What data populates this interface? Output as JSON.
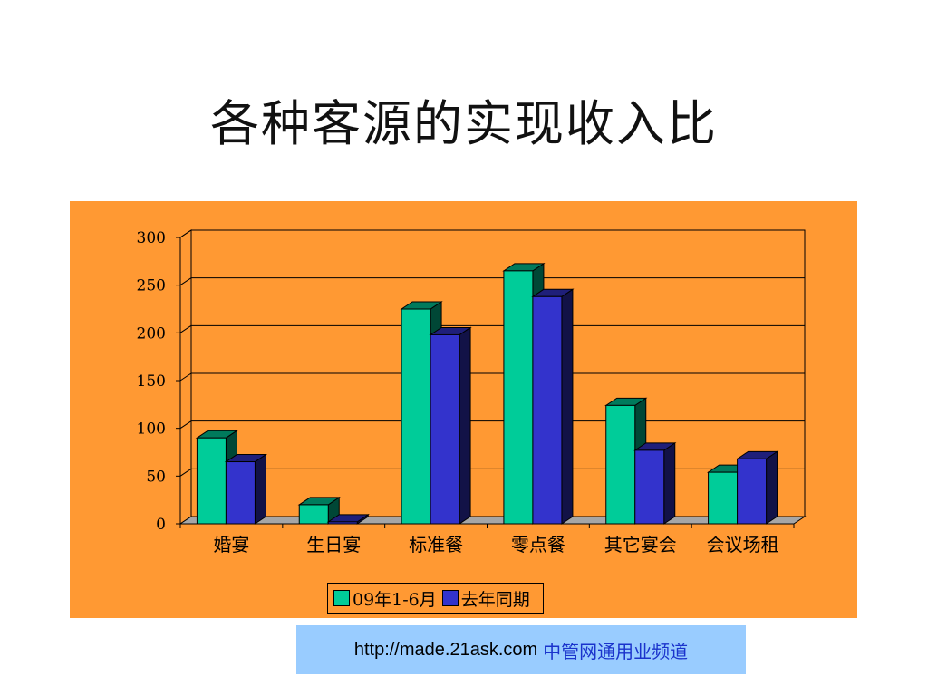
{
  "title": "各种客源的实现收入比",
  "chart_data": {
    "type": "bar",
    "style": "3d-clustered",
    "title": "",
    "xlabel": "",
    "ylabel": "",
    "ylim": [
      0,
      300
    ],
    "yticks": [
      0,
      50,
      100,
      150,
      200,
      250,
      300
    ],
    "grid": true,
    "legend_position": "bottom",
    "categories": [
      "婚宴",
      "生日宴",
      "标准餐",
      "零点餐",
      "其它宴会",
      "会议场租"
    ],
    "series": [
      {
        "name": "09年1-6月",
        "color": "#00cc99",
        "values": [
          90,
          20,
          225,
          265,
          124,
          54
        ]
      },
      {
        "name": "去年同期",
        "color": "#3333cc",
        "values": [
          65,
          2,
          198,
          238,
          77,
          68
        ]
      }
    ]
  },
  "colors": {
    "panel_background": "#ff9933",
    "source_box": "#99ccff",
    "source_name": "#1a33cc"
  },
  "source": {
    "url": "http://made.21ask.com",
    "name": "中管网通用业频道"
  }
}
